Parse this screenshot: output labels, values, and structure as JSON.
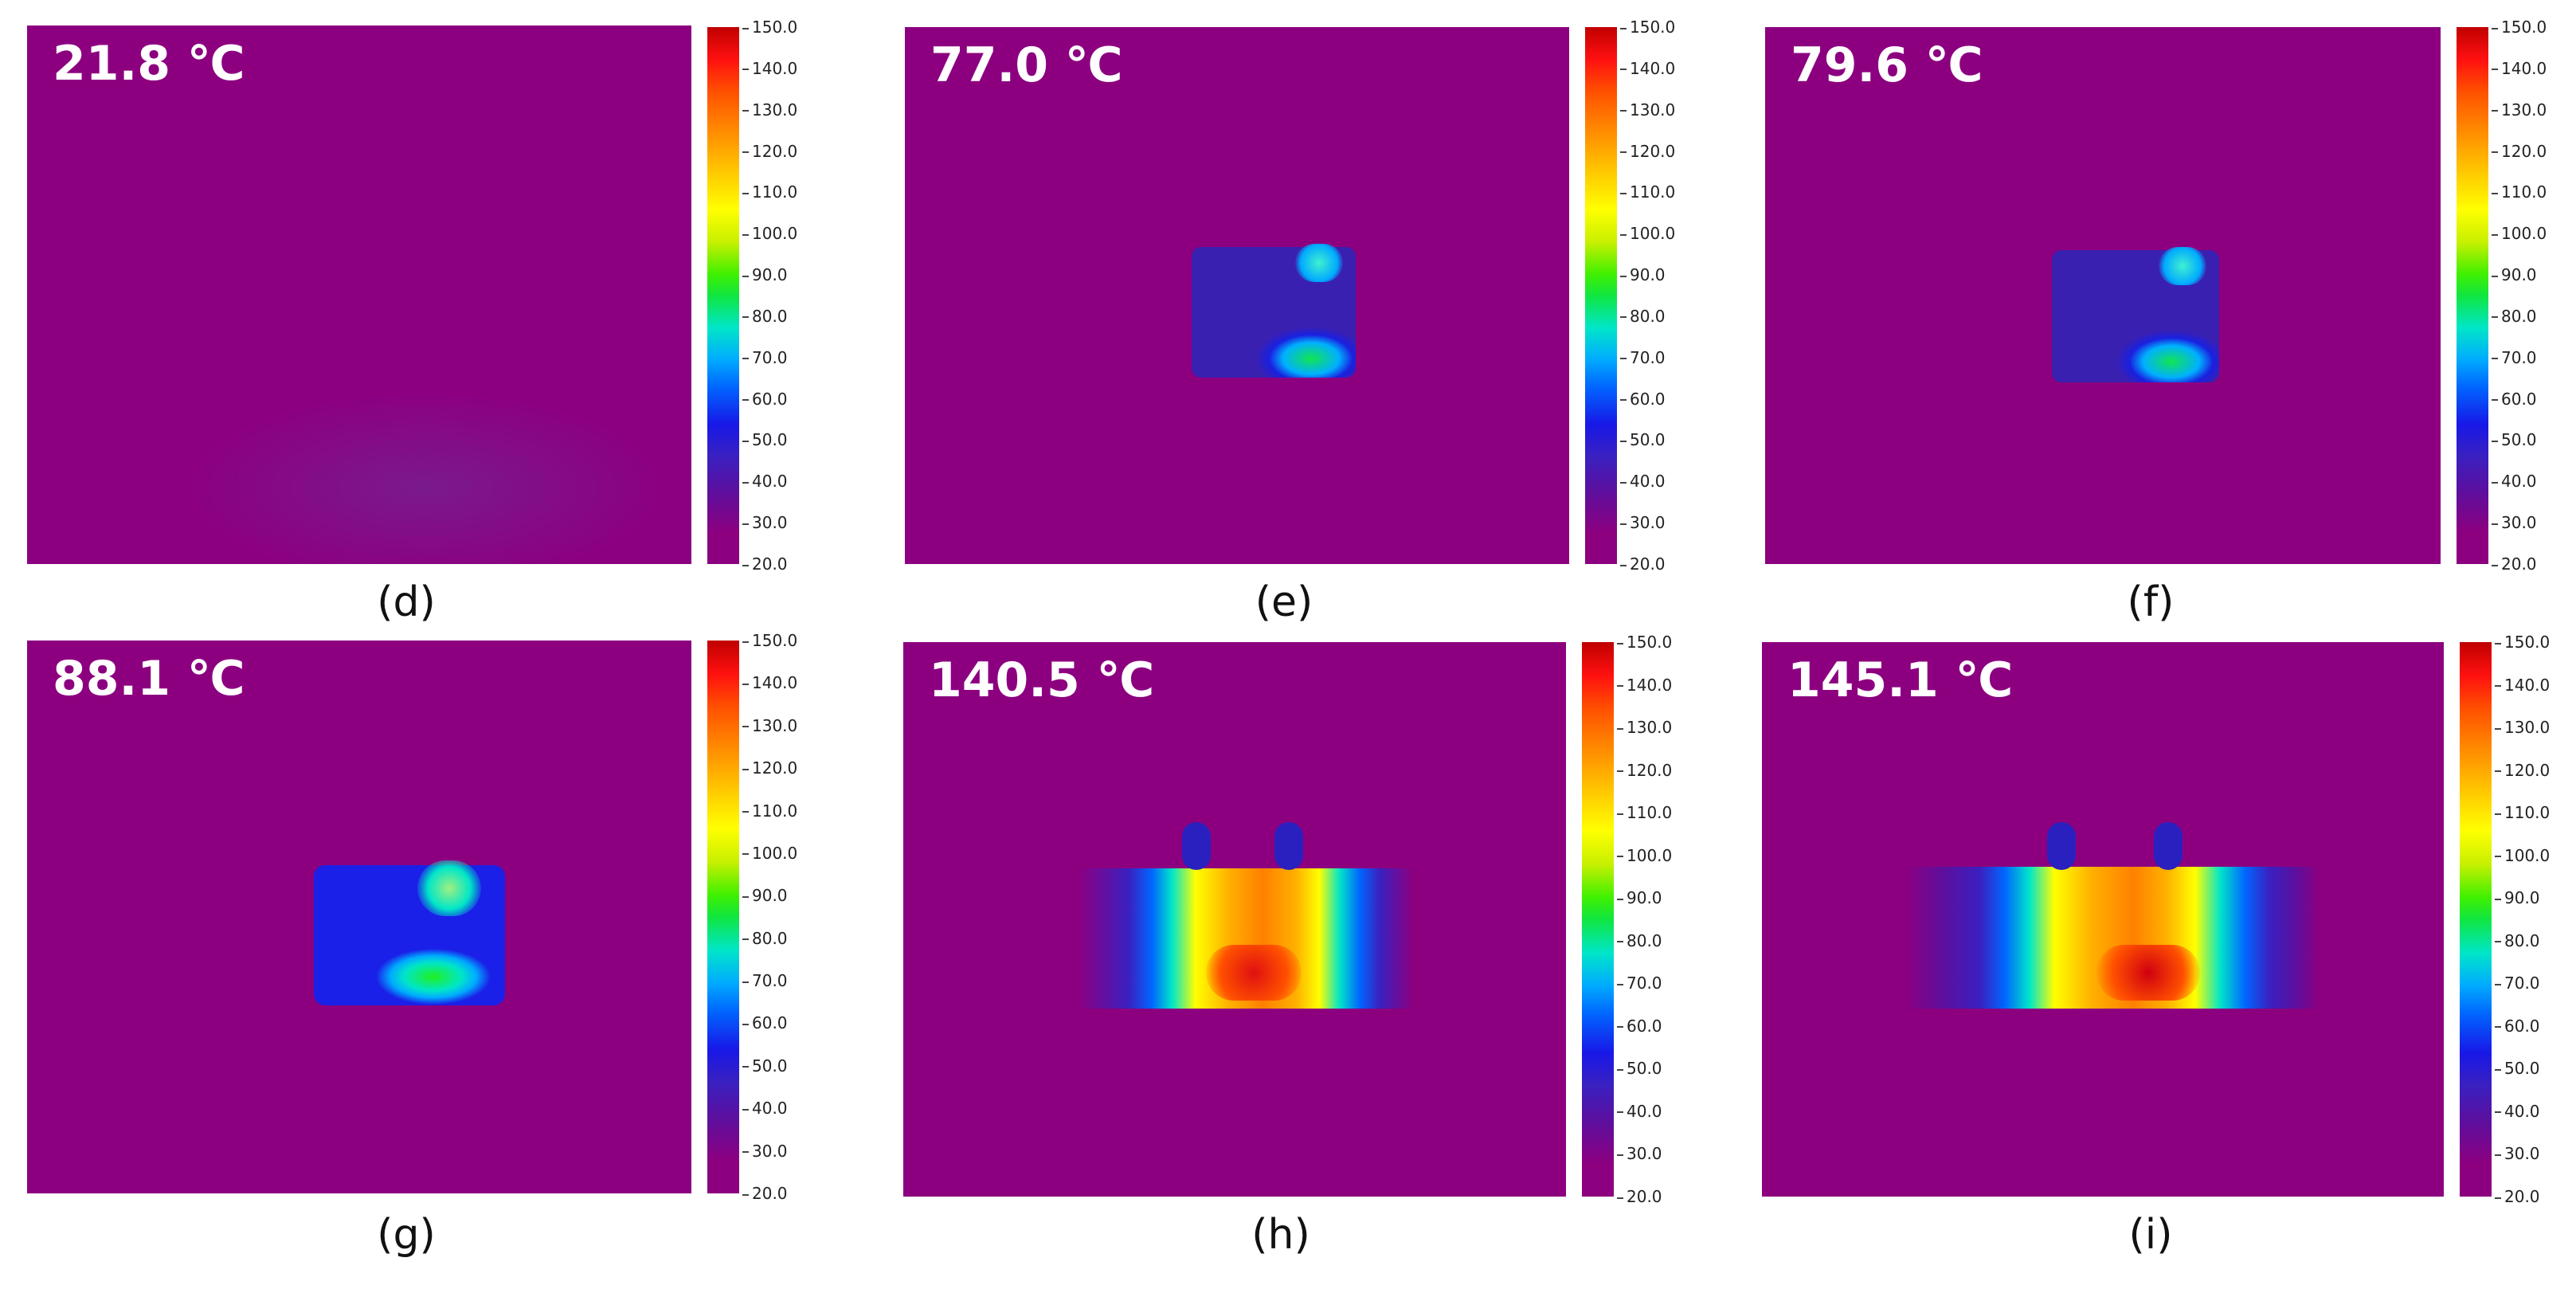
{
  "colorbar_ticks": [
    "150.0",
    "140.0",
    "130.0",
    "120.0",
    "110.0",
    "100.0",
    "90.0",
    "80.0",
    "70.0",
    "60.0",
    "50.0",
    "40.0",
    "30.0",
    "20.0"
  ],
  "panels": [
    {
      "temp": "21.8 ℃",
      "label": "(d)"
    },
    {
      "temp": "77.0 ℃",
      "label": "(e)"
    },
    {
      "temp": "79.6 ℃",
      "label": "(f)"
    },
    {
      "temp": "88.1 ℃",
      "label": "(g)"
    },
    {
      "temp": "140.5 ℃",
      "label": "(h)"
    },
    {
      "temp": "145.1 ℃",
      "label": "(i)"
    }
  ],
  "colors": {
    "background_purple": "#8c0080"
  }
}
